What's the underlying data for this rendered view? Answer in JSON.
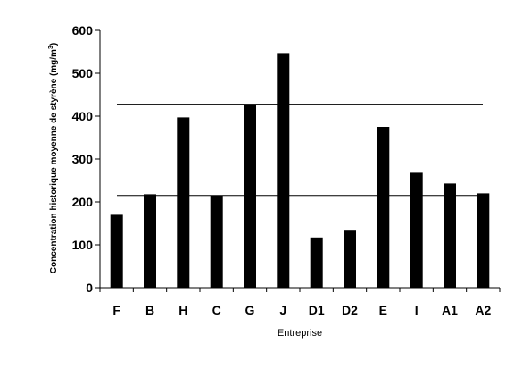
{
  "chart_data": {
    "type": "bar",
    "categories": [
      "F",
      "B",
      "H",
      "C",
      "G",
      "J",
      "D1",
      "D2",
      "E",
      "I",
      "A1",
      "A2"
    ],
    "values": [
      170,
      218,
      397,
      215,
      428,
      547,
      117,
      135,
      375,
      268,
      243,
      220
    ],
    "xlabel": "Entreprise",
    "ylabel_main": "Concentration historique moyenne de styrène (mg/m",
    "ylabel_sup": "3",
    "ylabel_end": ")",
    "ylim": [
      0,
      600
    ],
    "yticks": [
      0,
      100,
      200,
      300,
      400,
      500,
      600
    ],
    "reference_lines": [
      428,
      215
    ],
    "grid": false,
    "legend": "none",
    "bar_color": "#000000"
  }
}
